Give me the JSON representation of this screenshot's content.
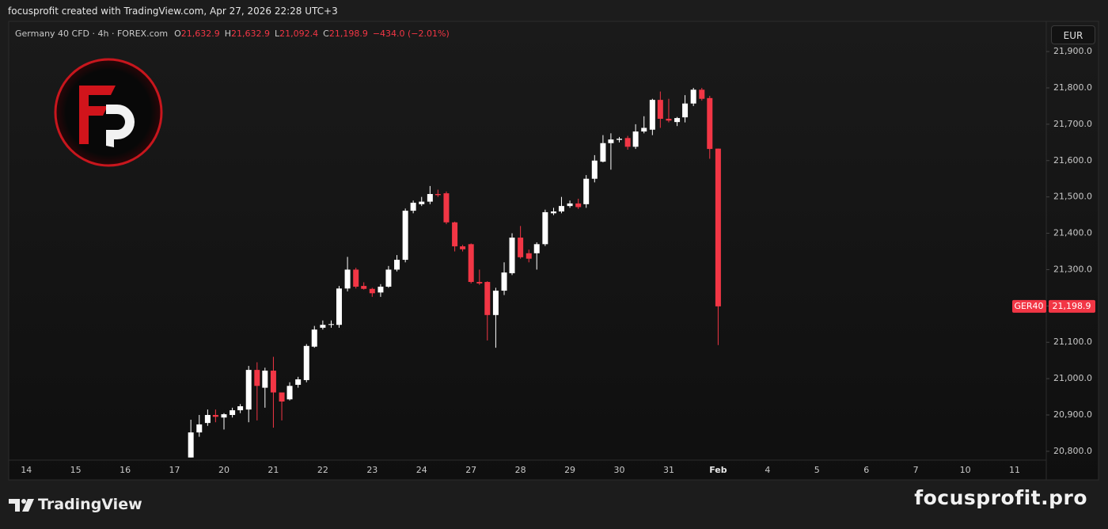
{
  "header": {
    "credit": "focusprofit created with TradingView.com, Apr 27, 2026 22:28 UTC+3"
  },
  "footer": {
    "brand": "TradingView",
    "site": "focusprofit.pro"
  },
  "chart_data": {
    "type": "candlestick",
    "title": "Germany 40 CFD · 4h · FOREX.com",
    "ohlc_legend": [
      {
        "key": "O",
        "value": 21632.9,
        "label": "21,632.9"
      },
      {
        "key": "H",
        "value": 21632.9,
        "label": "21,632.9"
      },
      {
        "key": "L",
        "value": 21092.4,
        "label": "21,092.4"
      },
      {
        "key": "C",
        "value": 21198.9,
        "label": "21,198.9"
      }
    ],
    "change": "−434.0 (−2.01%)",
    "currency": "EUR",
    "symbol": "GER40",
    "last_price": {
      "value": 21198.9,
      "label": "21,198.9"
    },
    "up_color": "#ffffff",
    "down_color": "#f23645",
    "xlim": [
      -0.34,
      20.64
    ],
    "xticks": [
      {
        "value": 0,
        "label": "14"
      },
      {
        "value": 1,
        "label": "15"
      },
      {
        "value": 2,
        "label": "16"
      },
      {
        "value": 3,
        "label": "17"
      },
      {
        "value": 4,
        "label": "20"
      },
      {
        "value": 5,
        "label": "21"
      },
      {
        "value": 6,
        "label": "22"
      },
      {
        "value": 7,
        "label": "23"
      },
      {
        "value": 8,
        "label": "24"
      },
      {
        "value": 9,
        "label": "27"
      },
      {
        "value": 10,
        "label": "28"
      },
      {
        "value": 11,
        "label": "29"
      },
      {
        "value": 12,
        "label": "30"
      },
      {
        "value": 13,
        "label": "31"
      },
      {
        "value": 14,
        "label": "Feb"
      },
      {
        "value": 15,
        "label": "4"
      },
      {
        "value": 16,
        "label": "5"
      },
      {
        "value": 17,
        "label": "6"
      },
      {
        "value": 18,
        "label": "7"
      },
      {
        "value": 19,
        "label": "10"
      },
      {
        "value": 20,
        "label": "11"
      }
    ],
    "ylim": [
      20778,
      21983
    ],
    "yticks": [
      {
        "value": 20800,
        "label": "20,800.0"
      },
      {
        "value": 20900,
        "label": "20,900.0"
      },
      {
        "value": 21000,
        "label": "21,000.0"
      },
      {
        "value": 21100,
        "label": "21,100.0"
      },
      {
        "value": 21200,
        "label": "21,200.0"
      },
      {
        "value": 21300,
        "label": "21,300.0"
      },
      {
        "value": 21400,
        "label": "21,400.0"
      },
      {
        "value": 21500,
        "label": "21,500.0"
      },
      {
        "value": 21600,
        "label": "21,600.0"
      },
      {
        "value": 21700,
        "label": "21,700.0"
      },
      {
        "value": 21800,
        "label": "21,800.0"
      },
      {
        "value": 21900,
        "label": "21,900.0"
      }
    ],
    "x": [
      3.33,
      3.5,
      3.67,
      3.83,
      4,
      4.17,
      4.33,
      4.5,
      4.67,
      4.83,
      5,
      5.17,
      5.33,
      5.5,
      5.67,
      5.83,
      6,
      6.17,
      6.33,
      6.5,
      6.67,
      6.83,
      7,
      7.17,
      7.33,
      7.5,
      7.67,
      7.83,
      8,
      8.17,
      8.33,
      8.5,
      8.67,
      8.83,
      9,
      9.17,
      9.33,
      9.5,
      9.67,
      9.83,
      10,
      10.17,
      10.33,
      10.5,
      10.67,
      10.83,
      11,
      11.17,
      11.33,
      11.5,
      11.67,
      11.83,
      12,
      12.17,
      12.33,
      12.5,
      12.67,
      12.83,
      13,
      13.17,
      13.33,
      13.5,
      13.67,
      13.83,
      14
    ],
    "open": [
      20783,
      20852,
      20878,
      20900,
      20893,
      20900,
      20913,
      20915,
      21024,
      20975,
      21022,
      20962,
      20943,
      20983,
      20996,
      21088,
      21140,
      21148,
      21148,
      21248,
      21300,
      21255,
      21247,
      21237,
      21253,
      21300,
      21327,
      21462,
      21480,
      21487,
      21508,
      21510,
      21430,
      21364,
      21370,
      21266,
      21266,
      21175,
      21242,
      21290,
      21388,
      21345,
      21345,
      21370,
      21455,
      21460,
      21475,
      21482,
      21480,
      21550,
      21597,
      21648,
      21657,
      21662,
      21638,
      21680,
      21685,
      21767,
      21715,
      21706,
      21719,
      21757,
      21795,
      21772,
      21632.9
    ],
    "high": [
      20887,
      20900,
      20915,
      20915,
      20905,
      20920,
      20930,
      21035,
      21045,
      21030,
      21060,
      20960,
      20990,
      21005,
      21095,
      21145,
      21160,
      21160,
      21255,
      21335,
      21305,
      21265,
      21250,
      21260,
      21310,
      21340,
      21468,
      21490,
      21500,
      21530,
      21520,
      21515,
      21432,
      21368,
      21372,
      21300,
      21268,
      21250,
      21320,
      21400,
      21420,
      21355,
      21375,
      21465,
      21470,
      21500,
      21490,
      21495,
      21560,
      21615,
      21670,
      21675,
      21665,
      21668,
      21700,
      21722,
      21770,
      21790,
      21770,
      21720,
      21780,
      21800,
      21800,
      21778,
      21632.9
    ],
    "low": [
      20783,
      20840,
      20870,
      20880,
      20860,
      20893,
      20905,
      20880,
      20885,
      20920,
      20865,
      20885,
      20940,
      20975,
      20990,
      21085,
      21135,
      21140,
      21140,
      21240,
      21248,
      21245,
      21225,
      21225,
      21250,
      21295,
      21320,
      21455,
      21475,
      21480,
      21500,
      21425,
      21350,
      21350,
      21262,
      21258,
      21105,
      21085,
      21230,
      21285,
      21330,
      21320,
      21300,
      21365,
      21450,
      21455,
      21470,
      21467,
      21470,
      21540,
      21595,
      21575,
      21650,
      21630,
      21632,
      21675,
      21670,
      21690,
      21705,
      21695,
      21705,
      21750,
      21765,
      21605,
      21092.4
    ],
    "close": [
      20852,
      20874,
      20900,
      20895,
      20902,
      20913,
      20924,
      21024,
      20980,
      21022,
      20962,
      20937,
      20980,
      20998,
      21090,
      21135,
      21148,
      21150,
      21248,
      21300,
      21253,
      21247,
      21235,
      21253,
      21300,
      21327,
      21462,
      21484,
      21487,
      21508,
      21505,
      21430,
      21364,
      21356,
      21266,
      21262,
      21175,
      21242,
      21292,
      21388,
      21334,
      21330,
      21370,
      21458,
      21460,
      21475,
      21482,
      21472,
      21550,
      21600,
      21648,
      21658,
      21660,
      21638,
      21680,
      21690,
      21767,
      21715,
      21710,
      21717,
      21757,
      21795,
      21770,
      21632,
      21198.9
    ]
  }
}
